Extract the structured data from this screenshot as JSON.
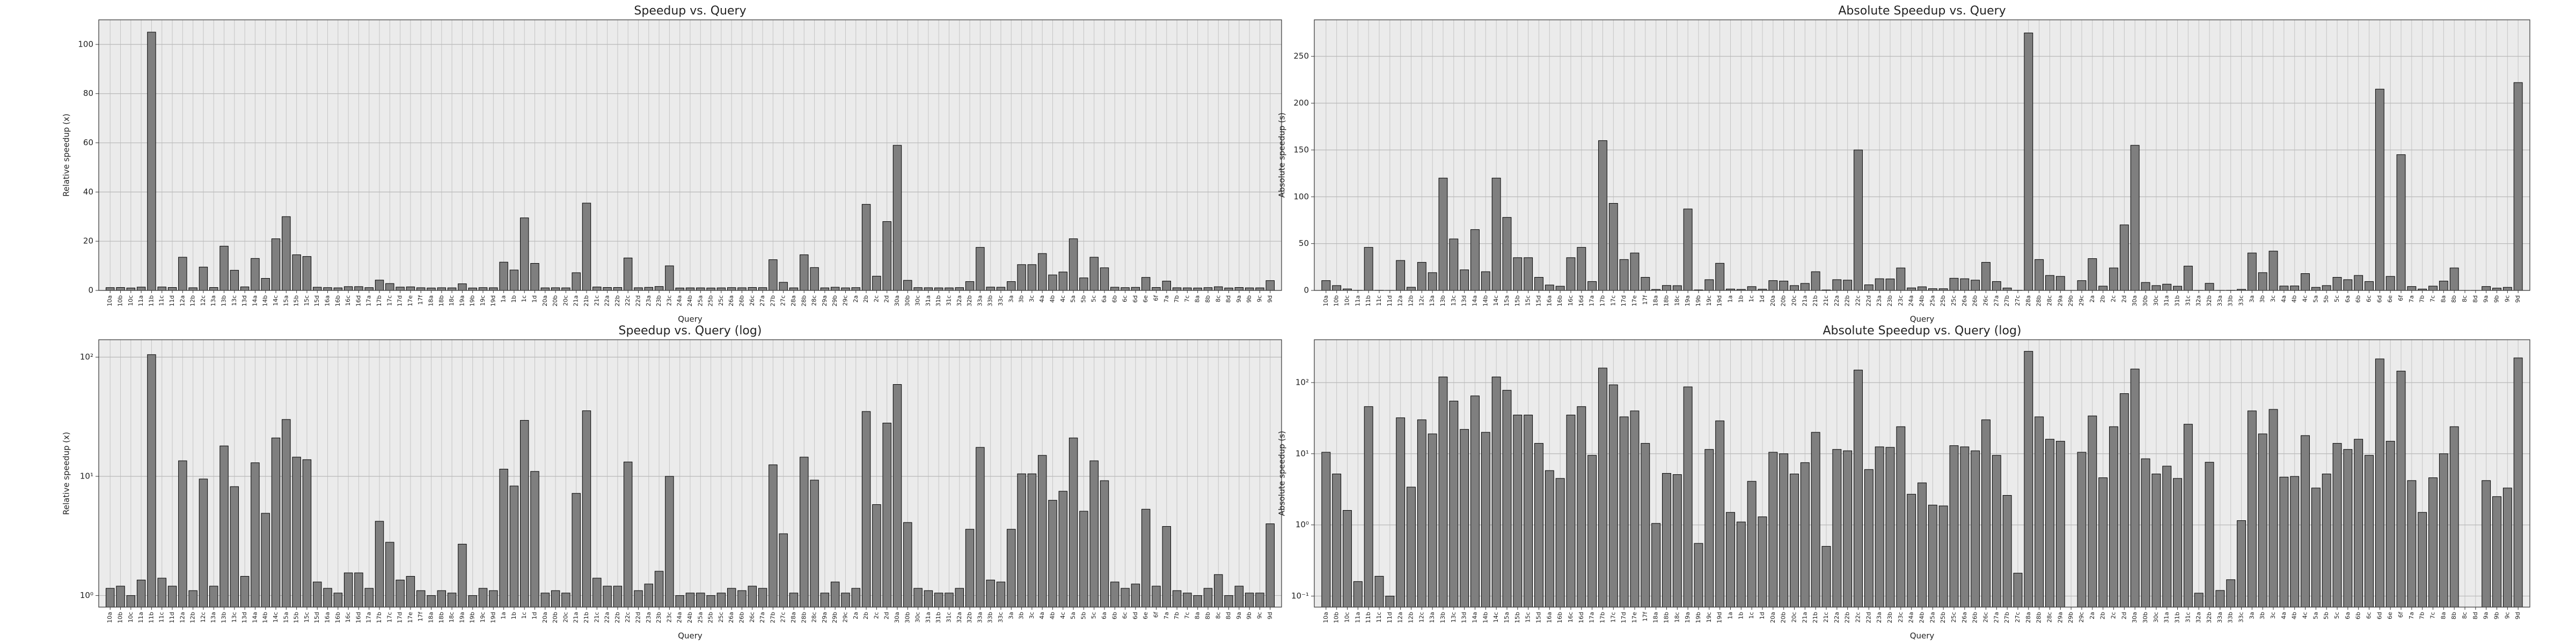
{
  "chart_data": [
    {
      "type": "bar",
      "title": "Speedup vs. Query",
      "xlabel": "Query",
      "ylabel": "Relative speedup (x)",
      "color": "#7f7f7f",
      "grid": true,
      "log": false,
      "categories": [
        "10a",
        "10b",
        "10c",
        "11a",
        "11b",
        "11c",
        "11d",
        "12a",
        "12b",
        "12c",
        "13a",
        "13b",
        "13c",
        "13d",
        "14a",
        "14b",
        "14c",
        "15a",
        "15b",
        "15c",
        "15d",
        "16a",
        "16b",
        "16c",
        "16d",
        "17a",
        "17b",
        "17c",
        "17d",
        "17e",
        "17f",
        "18a",
        "18b",
        "18c",
        "19a",
        "19b",
        "19c",
        "19d",
        "1a",
        "1b",
        "1c",
        "1d",
        "20a",
        "20b",
        "20c",
        "21a",
        "21b",
        "21c",
        "22a",
        "22b",
        "22c",
        "22d",
        "23a",
        "23b",
        "23c",
        "24a",
        "24b",
        "25a",
        "25b",
        "25c",
        "26a",
        "26b",
        "26c",
        "27a",
        "27b",
        "27c",
        "28a",
        "28b",
        "28c",
        "29a",
        "29b",
        "29c",
        "2a",
        "2b",
        "2c",
        "2d",
        "30a",
        "30b",
        "30c",
        "31a",
        "31b",
        "31c",
        "32a",
        "32b",
        "33a",
        "33b",
        "33c",
        "3a",
        "3b",
        "3c",
        "4a",
        "4b",
        "4c",
        "5a",
        "5b",
        "5c",
        "6a",
        "6b",
        "6c",
        "6d",
        "6e",
        "6f",
        "7a",
        "7b",
        "7c",
        "8a",
        "8b",
        "8c",
        "8d",
        "9a",
        "9b",
        "9c",
        "9d"
      ],
      "values": [
        1.15,
        1.2,
        1.0,
        1.35,
        105,
        1.4,
        1.2,
        13.5,
        1.1,
        9.5,
        1.2,
        18,
        8.2,
        1.45,
        13,
        4.9,
        21,
        30,
        14.5,
        13.8,
        1.3,
        1.15,
        1.05,
        1.55,
        1.55,
        1.15,
        4.2,
        2.8,
        1.35,
        1.45,
        1.1,
        1.0,
        1.1,
        1.05,
        2.7,
        1.0,
        1.15,
        1.1,
        11.5,
        8.3,
        29.5,
        11,
        1.05,
        1.1,
        1.05,
        7.2,
        35.5,
        1.4,
        1.2,
        1.2,
        13.2,
        1.1,
        1.25,
        1.6,
        10,
        1.0,
        1.05,
        1.05,
        1.0,
        1.05,
        1.15,
        1.1,
        1.2,
        1.15,
        12.5,
        3.3,
        1.05,
        14.5,
        9.3,
        1.05,
        1.3,
        1.05,
        1.15,
        35,
        5.8,
        28,
        59,
        4.1,
        1.15,
        1.1,
        1.05,
        1.05,
        1.15,
        3.6,
        17.5,
        1.35,
        1.3,
        3.6,
        10.5,
        10.5,
        15,
        6.3,
        7.5,
        21,
        5.1,
        13.5,
        9.2,
        1.3,
        1.15,
        1.25,
        5.3,
        1.2,
        3.8,
        1.1,
        1.05,
        1.0,
        1.15,
        1.5,
        1.0,
        1.2,
        1.05,
        1.05,
        4.0
      ],
      "ylim": [
        0,
        110
      ],
      "yticks": [
        0,
        20,
        40,
        60,
        80,
        100
      ]
    },
    {
      "type": "bar",
      "title": "Absolute Speedup vs. Query",
      "xlabel": "Query",
      "ylabel": "Absolute speedup (s)",
      "color": "#7f7f7f",
      "grid": true,
      "log": false,
      "categories": [
        "10a",
        "10b",
        "10c",
        "11a",
        "11b",
        "11c",
        "11d",
        "12a",
        "12b",
        "12c",
        "13a",
        "13b",
        "13c",
        "13d",
        "14a",
        "14b",
        "14c",
        "15a",
        "15b",
        "15c",
        "15d",
        "16a",
        "16b",
        "16c",
        "16d",
        "17a",
        "17b",
        "17c",
        "17d",
        "17e",
        "17f",
        "18a",
        "18b",
        "18c",
        "19a",
        "19b",
        "19c",
        "19d",
        "1a",
        "1b",
        "1c",
        "1d",
        "20a",
        "20b",
        "20c",
        "21a",
        "21b",
        "21c",
        "22a",
        "22b",
        "22c",
        "22d",
        "23a",
        "23b",
        "23c",
        "24a",
        "24b",
        "25a",
        "25b",
        "25c",
        "26a",
        "26b",
        "26c",
        "27a",
        "27b",
        "27c",
        "28a",
        "28b",
        "28c",
        "29a",
        "29b",
        "29c",
        "2a",
        "2b",
        "2c",
        "2d",
        "30a",
        "30b",
        "30c",
        "31a",
        "31b",
        "31c",
        "32a",
        "32b",
        "33a",
        "33b",
        "33c",
        "3a",
        "3b",
        "3c",
        "4a",
        "4b",
        "4c",
        "5a",
        "5b",
        "5c",
        "6a",
        "6b",
        "6c",
        "6d",
        "6e",
        "6f",
        "7a",
        "7b",
        "7c",
        "8a",
        "8b",
        "8c",
        "8d",
        "9a",
        "9b",
        "9c",
        "9d"
      ],
      "values": [
        10.5,
        5.2,
        1.6,
        0.16,
        46,
        0.19,
        0.1,
        32,
        3.4,
        30,
        19,
        120,
        55,
        22,
        65,
        20,
        120,
        78,
        35,
        35,
        14,
        5.8,
        4.5,
        35,
        46,
        9.5,
        160,
        93,
        33,
        40,
        14,
        1.05,
        5.3,
        5.1,
        87,
        0.55,
        11.5,
        29,
        1.5,
        1.1,
        4.1,
        1.3,
        10.5,
        10,
        5.2,
        7.5,
        20,
        0.5,
        11.5,
        11,
        150,
        6,
        12.5,
        12.3,
        24,
        2.7,
        3.9,
        1.9,
        1.85,
        13,
        12.5,
        11,
        30,
        9.5,
        2.6,
        0.21,
        275,
        33,
        16,
        15,
        0.05,
        10.5,
        34,
        4.6,
        24,
        70,
        155,
        8.5,
        5.2,
        6.7,
        4.5,
        26,
        0.11,
        7.6,
        0.12,
        0.17,
        1.15,
        40,
        19,
        42,
        4.7,
        4.8,
        18,
        3.3,
        5.2,
        14,
        11.5,
        16,
        9.5,
        215,
        15,
        145,
        4.2,
        1.5,
        4.6,
        10,
        24,
        0.05,
        0.06,
        4.2,
        2.5,
        3.3,
        222
      ],
      "ylim": [
        0,
        289
      ],
      "yticks": [
        0,
        50,
        100,
        150,
        200,
        250
      ]
    },
    {
      "type": "bar",
      "title": "Speedup vs. Query (log)",
      "xlabel": "Query",
      "ylabel": "Relative speedup (x)",
      "color": "#7f7f7f",
      "grid": true,
      "log": true,
      "categories": [
        "10a",
        "10b",
        "10c",
        "11a",
        "11b",
        "11c",
        "11d",
        "12a",
        "12b",
        "12c",
        "13a",
        "13b",
        "13c",
        "13d",
        "14a",
        "14b",
        "14c",
        "15a",
        "15b",
        "15c",
        "15d",
        "16a",
        "16b",
        "16c",
        "16d",
        "17a",
        "17b",
        "17c",
        "17d",
        "17e",
        "17f",
        "18a",
        "18b",
        "18c",
        "19a",
        "19b",
        "19c",
        "19d",
        "1a",
        "1b",
        "1c",
        "1d",
        "20a",
        "20b",
        "20c",
        "21a",
        "21b",
        "21c",
        "22a",
        "22b",
        "22c",
        "22d",
        "23a",
        "23b",
        "23c",
        "24a",
        "24b",
        "25a",
        "25b",
        "25c",
        "26a",
        "26b",
        "26c",
        "27a",
        "27b",
        "27c",
        "28a",
        "28b",
        "28c",
        "29a",
        "29b",
        "29c",
        "2a",
        "2b",
        "2c",
        "2d",
        "30a",
        "30b",
        "30c",
        "31a",
        "31b",
        "31c",
        "32a",
        "32b",
        "33a",
        "33b",
        "33c",
        "3a",
        "3b",
        "3c",
        "4a",
        "4b",
        "4c",
        "5a",
        "5b",
        "5c",
        "6a",
        "6b",
        "6c",
        "6d",
        "6e",
        "6f",
        "7a",
        "7b",
        "7c",
        "8a",
        "8b",
        "8c",
        "8d",
        "9a",
        "9b",
        "9c",
        "9d"
      ],
      "values": [
        1.15,
        1.2,
        1.0,
        1.35,
        105,
        1.4,
        1.2,
        13.5,
        1.1,
        9.5,
        1.2,
        18,
        8.2,
        1.45,
        13,
        4.9,
        21,
        30,
        14.5,
        13.8,
        1.3,
        1.15,
        1.05,
        1.55,
        1.55,
        1.15,
        4.2,
        2.8,
        1.35,
        1.45,
        1.1,
        1.0,
        1.1,
        1.05,
        2.7,
        1.0,
        1.15,
        1.1,
        11.5,
        8.3,
        29.5,
        11,
        1.05,
        1.1,
        1.05,
        7.2,
        35.5,
        1.4,
        1.2,
        1.2,
        13.2,
        1.1,
        1.25,
        1.6,
        10,
        1.0,
        1.05,
        1.05,
        1.0,
        1.05,
        1.15,
        1.1,
        1.2,
        1.15,
        12.5,
        3.3,
        1.05,
        14.5,
        9.3,
        1.05,
        1.3,
        1.05,
        1.15,
        35,
        5.8,
        28,
        59,
        4.1,
        1.15,
        1.1,
        1.05,
        1.05,
        1.15,
        3.6,
        17.5,
        1.35,
        1.3,
        3.6,
        10.5,
        10.5,
        15,
        6.3,
        7.5,
        21,
        5.1,
        13.5,
        9.2,
        1.3,
        1.15,
        1.25,
        5.3,
        1.2,
        3.8,
        1.1,
        1.05,
        1.0,
        1.15,
        1.5,
        1.0,
        1.2,
        1.05,
        1.05,
        4.0
      ],
      "ylim": [
        0.8,
        140
      ],
      "yticks": [
        {
          "value": 1,
          "label": "10⁰"
        },
        {
          "value": 10,
          "label": "10¹"
        },
        {
          "value": 100,
          "label": "10²"
        }
      ]
    },
    {
      "type": "bar",
      "title": "Absolute Speedup vs. Query (log)",
      "xlabel": "Query",
      "ylabel": "Absolute speedup (s)",
      "color": "#7f7f7f",
      "grid": true,
      "log": true,
      "categories": [
        "10a",
        "10b",
        "10c",
        "11a",
        "11b",
        "11c",
        "11d",
        "12a",
        "12b",
        "12c",
        "13a",
        "13b",
        "13c",
        "13d",
        "14a",
        "14b",
        "14c",
        "15a",
        "15b",
        "15c",
        "15d",
        "16a",
        "16b",
        "16c",
        "16d",
        "17a",
        "17b",
        "17c",
        "17d",
        "17e",
        "17f",
        "18a",
        "18b",
        "18c",
        "19a",
        "19b",
        "19c",
        "19d",
        "1a",
        "1b",
        "1c",
        "1d",
        "20a",
        "20b",
        "20c",
        "21a",
        "21b",
        "21c",
        "22a",
        "22b",
        "22c",
        "22d",
        "23a",
        "23b",
        "23c",
        "24a",
        "24b",
        "25a",
        "25b",
        "25c",
        "26a",
        "26b",
        "26c",
        "27a",
        "27b",
        "27c",
        "28a",
        "28b",
        "28c",
        "29a",
        "29b",
        "29c",
        "2a",
        "2b",
        "2c",
        "2d",
        "30a",
        "30b",
        "30c",
        "31a",
        "31b",
        "31c",
        "32a",
        "32b",
        "33a",
        "33b",
        "33c",
        "3a",
        "3b",
        "3c",
        "4a",
        "4b",
        "4c",
        "5a",
        "5b",
        "5c",
        "6a",
        "6b",
        "6c",
        "6d",
        "6e",
        "6f",
        "7a",
        "7b",
        "7c",
        "8a",
        "8b",
        "8c",
        "8d",
        "9a",
        "9b",
        "9c",
        "9d"
      ],
      "values": [
        10.5,
        5.2,
        1.6,
        0.16,
        46,
        0.19,
        0.1,
        32,
        3.4,
        30,
        19,
        120,
        55,
        22,
        65,
        20,
        120,
        78,
        35,
        35,
        14,
        5.8,
        4.5,
        35,
        46,
        9.5,
        160,
        93,
        33,
        40,
        14,
        1.05,
        5.3,
        5.1,
        87,
        0.55,
        11.5,
        29,
        1.5,
        1.1,
        4.1,
        1.3,
        10.5,
        10,
        5.2,
        7.5,
        20,
        0.5,
        11.5,
        11,
        150,
        6,
        12.5,
        12.3,
        24,
        2.7,
        3.9,
        1.9,
        1.85,
        13,
        12.5,
        11,
        30,
        9.5,
        2.6,
        0.21,
        275,
        33,
        16,
        15,
        0.05,
        10.5,
        34,
        4.6,
        24,
        70,
        155,
        8.5,
        5.2,
        6.7,
        4.5,
        26,
        0.11,
        7.6,
        0.12,
        0.17,
        1.15,
        40,
        19,
        42,
        4.7,
        4.8,
        18,
        3.3,
        5.2,
        14,
        11.5,
        16,
        9.5,
        215,
        15,
        145,
        4.2,
        1.5,
        4.6,
        10,
        24,
        0.05,
        0.06,
        4.2,
        2.5,
        3.3,
        222
      ],
      "ylim": [
        0.07,
        400
      ],
      "yticks": [
        {
          "value": 0.1,
          "label": "10⁻¹"
        },
        {
          "value": 1,
          "label": "10⁰"
        },
        {
          "value": 10,
          "label": "10¹"
        },
        {
          "value": 100,
          "label": "10²"
        }
      ]
    }
  ]
}
